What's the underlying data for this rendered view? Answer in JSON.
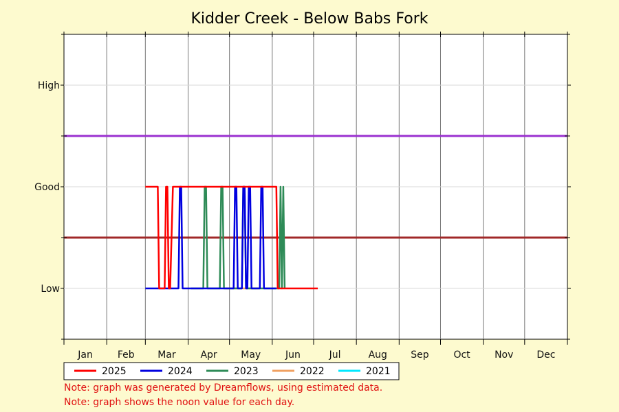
{
  "chart_data": {
    "type": "line",
    "title": "Kidder Creek - Below Babs Fork",
    "xlabel": "",
    "ylabel": "",
    "x_tick_labels": [
      "Jan",
      "Feb",
      "Mar",
      "Apr",
      "May",
      "Jun",
      "Jul",
      "Aug",
      "Sep",
      "Oct",
      "Nov",
      "Dec"
    ],
    "y_tick_labels": [
      "Low",
      "Good",
      "High"
    ],
    "y_levels": {
      "Low": 1,
      "Good": 2,
      "High": 3
    },
    "ylim": [
      0.5,
      3.5
    ],
    "xlim_day_of_year": [
      1,
      366
    ],
    "grid": true,
    "reference_lines": [
      {
        "value": 2.5,
        "color": "#9b30d0"
      },
      {
        "value": 1.5,
        "color": "#a02828"
      }
    ],
    "legend_position": "bottom",
    "series": [
      {
        "name": "2025",
        "color": "#ff0000",
        "x": [
          60,
          69,
          70,
          71,
          74,
          75,
          76,
          77,
          78,
          80,
          81,
          81,
          155,
          156,
          185
        ],
        "y": [
          2,
          2,
          1,
          1,
          1,
          2,
          2,
          1,
          1,
          2,
          2,
          2,
          2,
          1,
          1
        ]
      },
      {
        "name": "2024",
        "color": "#0000e0",
        "x": [
          60,
          84,
          85,
          86,
          87,
          88,
          124,
          125,
          126,
          127,
          130,
          131,
          132,
          133,
          134,
          135,
          136,
          137,
          143,
          144,
          145,
          146,
          155
        ],
        "y": [
          1,
          1,
          2,
          2,
          1,
          1,
          1,
          2,
          2,
          1,
          1,
          2,
          2,
          1,
          1,
          2,
          2,
          1,
          1,
          2,
          2,
          1,
          1
        ]
      },
      {
        "name": "2023",
        "color": "#2e8b57",
        "x": [
          93,
          102,
          103,
          104,
          105,
          114,
          115,
          116,
          117,
          130,
          131,
          132,
          133,
          157,
          158,
          159,
          160,
          161
        ],
        "y": [
          1,
          1,
          2,
          2,
          1,
          1,
          2,
          2,
          1,
          1,
          2,
          2,
          1,
          1,
          2,
          1,
          2,
          1
        ]
      },
      {
        "name": "2022",
        "color": "#f0a060",
        "x": [
          118,
          122,
          138,
          142
        ],
        "y": [
          1,
          1,
          1,
          1
        ]
      },
      {
        "name": "2021",
        "color": "#00e8ff",
        "x": [],
        "y": []
      }
    ]
  },
  "notes": [
    "Note: graph was generated by Dreamflows, using estimated data.",
    "Note: graph shows the noon value for each day."
  ]
}
